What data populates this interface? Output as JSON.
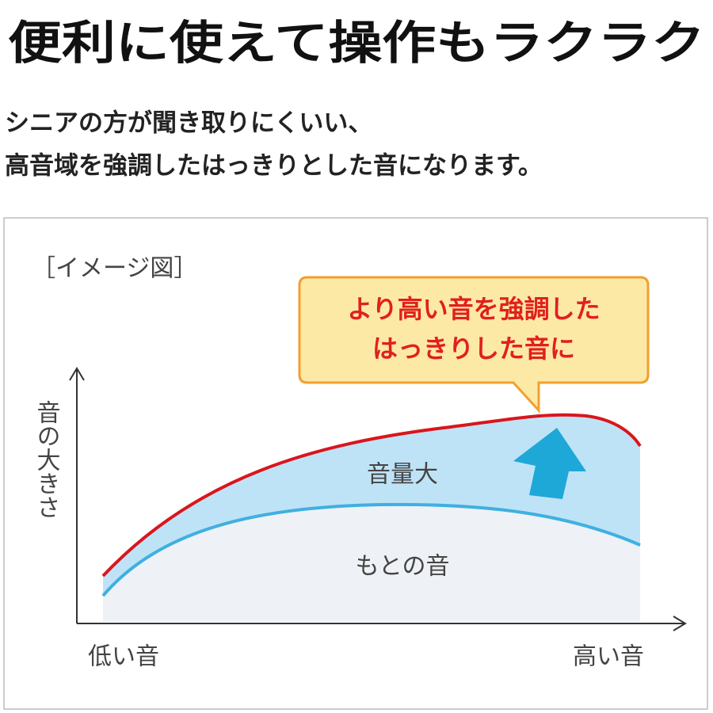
{
  "header": {
    "title": "便利に使えて操作もラクラク",
    "subtitle": [
      "シニアの方が聞き取りにくいい、",
      "高音域を強調したはっきりとした音になります。"
    ]
  },
  "diagram": {
    "caption": "［イメージ図］",
    "callout": [
      "より高い音を強調した",
      "はっきりした音に"
    ],
    "y_axis_label": "音の大きさ",
    "boost_label": "音量大",
    "base_label": "もとの音",
    "x_low_label": "低い音",
    "x_high_label": "高い音"
  }
}
